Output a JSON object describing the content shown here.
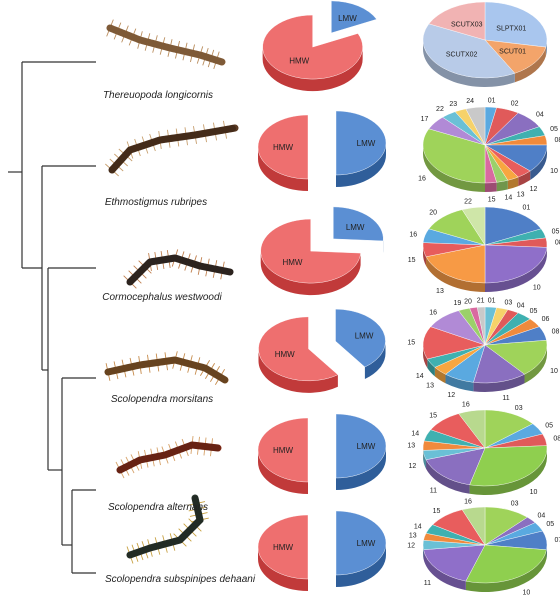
{
  "colors": {
    "hmw_top": "#ee6f6f",
    "hmw_side": "#c13a3a",
    "lmw_top": "#5b8fd3",
    "lmw_side": "#2f5e9a",
    "tree": "#333333"
  },
  "labels": {
    "hmw": "HMW",
    "lmw": "LMW"
  },
  "rows": [
    {
      "species": "Thereuopoda longicornis",
      "hmw_fraction": 0.82,
      "slices": [
        {
          "label": "SLPTX01",
          "value": 28,
          "color": "#a9c6ee"
        },
        {
          "label": "SCUT01",
          "value": 14,
          "color": "#f3a46a"
        },
        {
          "label": "SCUTX02",
          "value": 40,
          "color": "#b8cbe8"
        },
        {
          "label": "SCUTX03",
          "value": 18,
          "color": "#f1b3b3"
        }
      ]
    },
    {
      "species": "Ethmostigmus rubripes",
      "hmw_fraction": 0.5,
      "slices": [
        {
          "label": "01",
          "value": 3,
          "color": "#5aa9e0"
        },
        {
          "label": "02",
          "value": 6,
          "color": "#e05a5a"
        },
        {
          "label": "04",
          "value": 8,
          "color": "#8a6fc0"
        },
        {
          "label": "05",
          "value": 4,
          "color": "#3fb0b0"
        },
        {
          "label": "08",
          "value": 4,
          "color": "#f08a3c"
        },
        {
          "label": "10",
          "value": 12,
          "color": "#4f7fc7"
        },
        {
          "label": "12",
          "value": 4,
          "color": "#e85d5d"
        },
        {
          "label": "13",
          "value": 3,
          "color": "#f7a640"
        },
        {
          "label": "14",
          "value": 3,
          "color": "#9bd06a"
        },
        {
          "label": "15",
          "value": 3,
          "color": "#d96aa0"
        },
        {
          "label": "16",
          "value": 32,
          "color": "#9fd35a"
        },
        {
          "label": "17",
          "value": 6,
          "color": "#b18ad6"
        },
        {
          "label": "22",
          "value": 4,
          "color": "#6ac0d6"
        },
        {
          "label": "23",
          "value": 3,
          "color": "#f6d26a"
        },
        {
          "label": "24",
          "value": 5,
          "color": "#c9c9c9"
        }
      ]
    },
    {
      "species": "Cormocephalus westwoodi",
      "hmw_fraction": 0.74,
      "slices": [
        {
          "label": "01",
          "value": 18,
          "color": "#4f7fc7"
        },
        {
          "label": "05",
          "value": 4,
          "color": "#3fb0b0"
        },
        {
          "label": "08",
          "value": 4,
          "color": "#e05a5a"
        },
        {
          "label": "10",
          "value": 24,
          "color": "#8f6fc9"
        },
        {
          "label": "13",
          "value": 20,
          "color": "#f79a45"
        },
        {
          "label": "15",
          "value": 6,
          "color": "#e75c5c"
        },
        {
          "label": "16",
          "value": 6,
          "color": "#5aa9e0"
        },
        {
          "label": "20",
          "value": 12,
          "color": "#9fd35a"
        },
        {
          "label": "22",
          "value": 6,
          "color": "#cfe6a8"
        }
      ]
    },
    {
      "species": "Scolopendra morsitans",
      "hmw_fraction": 0.6,
      "slices": [
        {
          "label": "01",
          "value": 3,
          "color": "#6ac0d6"
        },
        {
          "label": "03",
          "value": 3,
          "color": "#f6d26a"
        },
        {
          "label": "04",
          "value": 3,
          "color": "#e05a5a"
        },
        {
          "label": "05",
          "value": 4,
          "color": "#3fb0b0"
        },
        {
          "label": "06",
          "value": 4,
          "color": "#f08a3c"
        },
        {
          "label": "08",
          "value": 6,
          "color": "#4f7fc7"
        },
        {
          "label": "10",
          "value": 16,
          "color": "#9fd35a"
        },
        {
          "label": "11",
          "value": 14,
          "color": "#8a6fc0"
        },
        {
          "label": "12",
          "value": 8,
          "color": "#5aa9e0"
        },
        {
          "label": "13",
          "value": 4,
          "color": "#f7a640"
        },
        {
          "label": "14",
          "value": 4,
          "color": "#3fb0b0"
        },
        {
          "label": "15",
          "value": 14,
          "color": "#e85d5d"
        },
        {
          "label": "16",
          "value": 10,
          "color": "#b18ad6"
        },
        {
          "label": "19",
          "value": 3,
          "color": "#9bd06a"
        },
        {
          "label": "20",
          "value": 2,
          "color": "#d96aa0"
        },
        {
          "label": "21",
          "value": 2,
          "color": "#c9c9c9"
        }
      ]
    },
    {
      "species": "Scolopendra alternans",
      "hmw_fraction": 0.5,
      "slices": [
        {
          "label": "03",
          "value": 14,
          "color": "#9fd35a"
        },
        {
          "label": "05",
          "value": 5,
          "color": "#5aa9e0"
        },
        {
          "label": "08",
          "value": 5,
          "color": "#e05a5a"
        },
        {
          "label": "10",
          "value": 30,
          "color": "#8fcf4f"
        },
        {
          "label": "11",
          "value": 16,
          "color": "#8a6fc0"
        },
        {
          "label": "12",
          "value": 4,
          "color": "#6ac0d6"
        },
        {
          "label": "13",
          "value": 4,
          "color": "#f08a3c"
        },
        {
          "label": "14",
          "value": 5,
          "color": "#3fb0b0"
        },
        {
          "label": "15",
          "value": 10,
          "color": "#e85d5d"
        },
        {
          "label": "16",
          "value": 7,
          "color": "#b8d98e"
        }
      ]
    },
    {
      "species": "Scolopendra subspinipes dehaani",
      "hmw_fraction": 0.5,
      "slices": [
        {
          "label": "03",
          "value": 12,
          "color": "#9fd35a"
        },
        {
          "label": "04",
          "value": 3,
          "color": "#8a6fc0"
        },
        {
          "label": "05",
          "value": 4,
          "color": "#5aa9e0"
        },
        {
          "label": "07",
          "value": 8,
          "color": "#4f7fc7"
        },
        {
          "label": "10",
          "value": 28,
          "color": "#8fcf4f"
        },
        {
          "label": "11",
          "value": 18,
          "color": "#8f6fc9"
        },
        {
          "label": "12",
          "value": 4,
          "color": "#6ac0d6"
        },
        {
          "label": "13",
          "value": 3,
          "color": "#f08a3c"
        },
        {
          "label": "14",
          "value": 4,
          "color": "#3fb0b0"
        },
        {
          "label": "15",
          "value": 10,
          "color": "#e85d5d"
        },
        {
          "label": "16",
          "value": 6,
          "color": "#b8d98e"
        }
      ]
    }
  ]
}
